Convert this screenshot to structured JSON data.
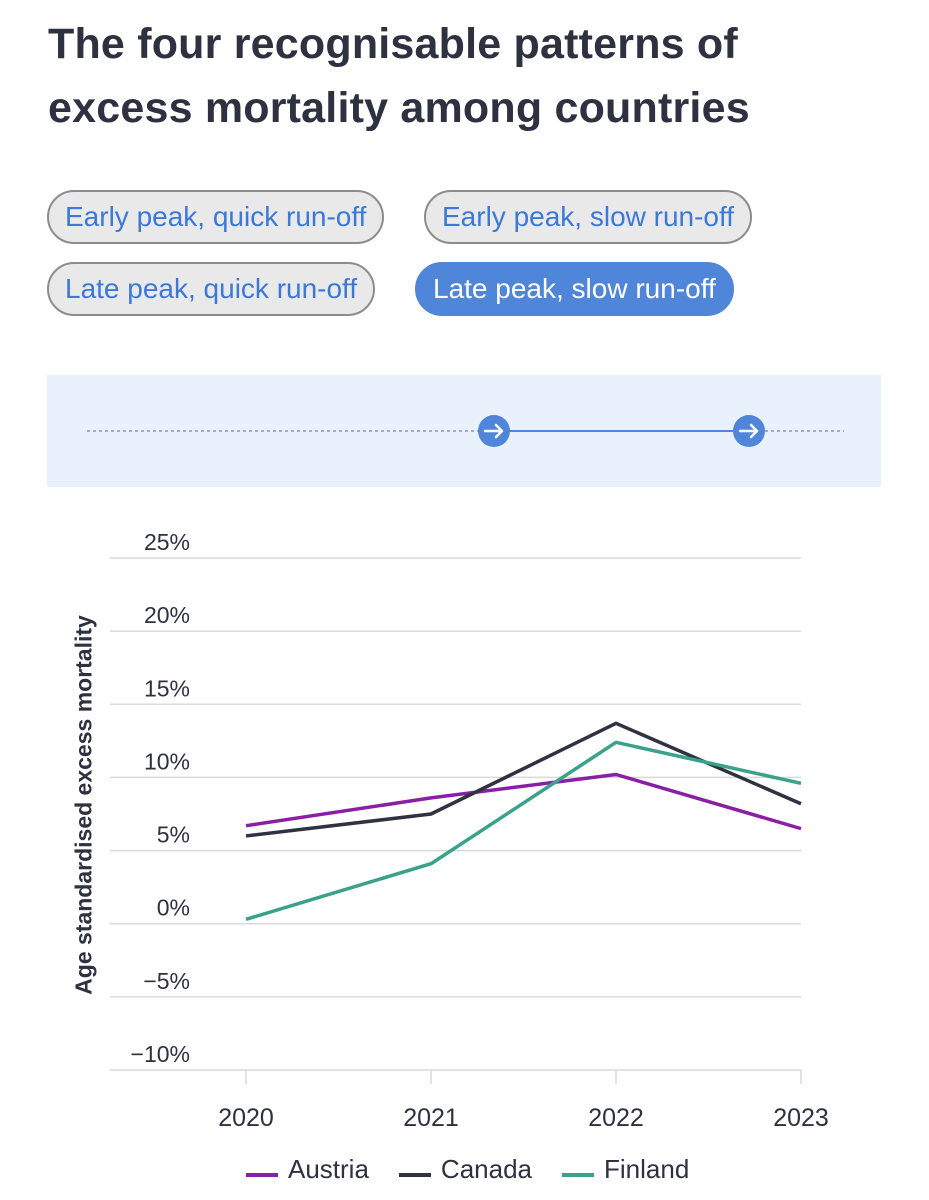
{
  "title": "The four recognisable patterns of excess mortality among countries",
  "filters": [
    {
      "label": "Early peak, quick run-off",
      "active": false
    },
    {
      "label": "Early peak, slow run-off",
      "active": false
    },
    {
      "label": "Late peak, quick run-off",
      "active": false
    },
    {
      "label": "Late peak, slow run-off",
      "active": true
    }
  ],
  "colors": {
    "accent": "#4f86d9",
    "Austria": "#8a1fa6",
    "Canada": "#2f3341",
    "Finland": "#3aa18a"
  },
  "chart_data": {
    "type": "line",
    "title": "",
    "xlabel": "",
    "ylabel": "Age standardised excess mortality",
    "x": [
      "2020",
      "2021",
      "2022",
      "2023"
    ],
    "ylim": [
      -10,
      25
    ],
    "yticks": [
      "25%",
      "20%",
      "15%",
      "10%",
      "5%",
      "0%",
      "−5%",
      "−10%"
    ],
    "ytick_values": [
      25,
      20,
      15,
      10,
      5,
      0,
      -5,
      -10
    ],
    "grid": true,
    "legend": "bottom",
    "series": [
      {
        "name": "Austria",
        "values": [
          6.7,
          8.6,
          10.2,
          6.5
        ]
      },
      {
        "name": "Canada",
        "values": [
          6.0,
          7.5,
          13.7,
          8.2
        ]
      },
      {
        "name": "Finland",
        "values": [
          0.3,
          4.1,
          12.4,
          9.6
        ]
      }
    ]
  }
}
